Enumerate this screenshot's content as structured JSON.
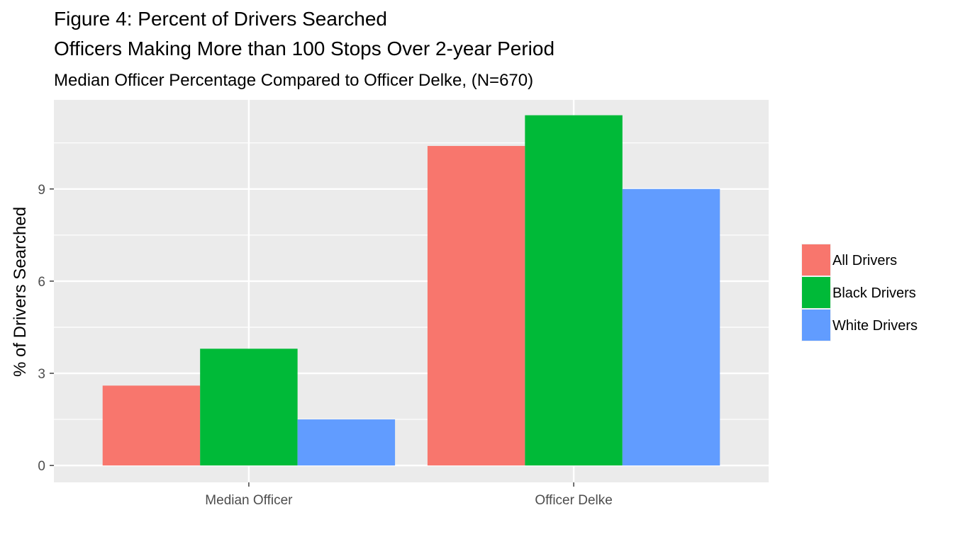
{
  "chart_data": {
    "type": "bar",
    "title_lines": [
      "Figure 4: Percent of Drivers Searched",
      "Officers Making More than 100 Stops Over 2-year Period"
    ],
    "subtitle": "Median Officer Percentage Compared to Officer Delke, (N=670)",
    "xlabel": "",
    "ylabel": "% of Drivers Searched",
    "categories": [
      "Median Officer",
      "Officer Delke"
    ],
    "series": [
      {
        "name": "All Drivers",
        "color": "#F8766D",
        "values": [
          2.6,
          10.4
        ]
      },
      {
        "name": "Black Drivers",
        "color": "#00BA38",
        "values": [
          3.8,
          11.4
        ]
      },
      {
        "name": "White Drivers",
        "color": "#619CFF",
        "values": [
          1.5,
          9.0
        ]
      }
    ],
    "ylim": [
      -0.55,
      11.9
    ],
    "yticks": [
      0,
      3,
      6,
      9
    ],
    "grid": true,
    "legend_position": "right"
  }
}
